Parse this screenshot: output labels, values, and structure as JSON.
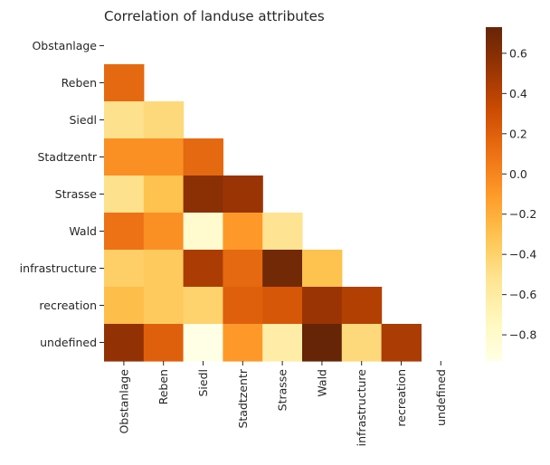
{
  "chart_data": {
    "type": "heatmap",
    "title": "Correlation of landuse attributes",
    "xlabel": "",
    "ylabel": "",
    "colormap": "YlOrBr",
    "x_categories": [
      "Obstanlage",
      "Reben",
      "Siedl",
      "Stadtzentr",
      "Strasse",
      "Wald",
      "infrastructure",
      "recreation",
      "undefined"
    ],
    "y_categories": [
      "Obstanlage",
      "Reben",
      "Siedl",
      "Stadtzentr",
      "Strasse",
      "Wald",
      "infrastructure",
      "recreation",
      "undefined"
    ],
    "mask": "upper-triangle-including-diagonal",
    "values": [
      [
        null,
        null,
        null,
        null,
        null,
        null,
        null,
        null,
        null
      ],
      [
        0.15,
        null,
        null,
        null,
        null,
        null,
        null,
        null,
        null
      ],
      [
        -0.5,
        -0.45,
        null,
        null,
        null,
        null,
        null,
        null,
        null
      ],
      [
        -0.05,
        -0.05,
        0.15,
        null,
        null,
        null,
        null,
        null,
        null
      ],
      [
        -0.5,
        -0.3,
        0.58,
        0.52,
        null,
        null,
        null,
        null,
        null
      ],
      [
        0.1,
        -0.05,
        -0.82,
        -0.1,
        -0.52,
        null,
        null,
        null,
        null
      ],
      [
        -0.38,
        -0.35,
        0.45,
        0.15,
        0.68,
        -0.3,
        null,
        null,
        null
      ],
      [
        -0.28,
        -0.35,
        -0.4,
        0.2,
        0.25,
        0.52,
        0.42,
        null,
        null
      ],
      [
        0.55,
        0.2,
        -0.93,
        -0.1,
        -0.62,
        0.73,
        -0.45,
        0.45,
        null
      ]
    ],
    "colorbar": {
      "vmin": -0.93,
      "vmax": 0.73,
      "ticks": [
        -0.8,
        -0.6,
        -0.4,
        -0.2,
        0.0,
        0.2,
        0.4,
        0.6
      ],
      "tick_labels": [
        "−0.8",
        "−0.6",
        "−0.4",
        "−0.2",
        "0.0",
        "0.2",
        "0.4",
        "0.6"
      ]
    }
  }
}
